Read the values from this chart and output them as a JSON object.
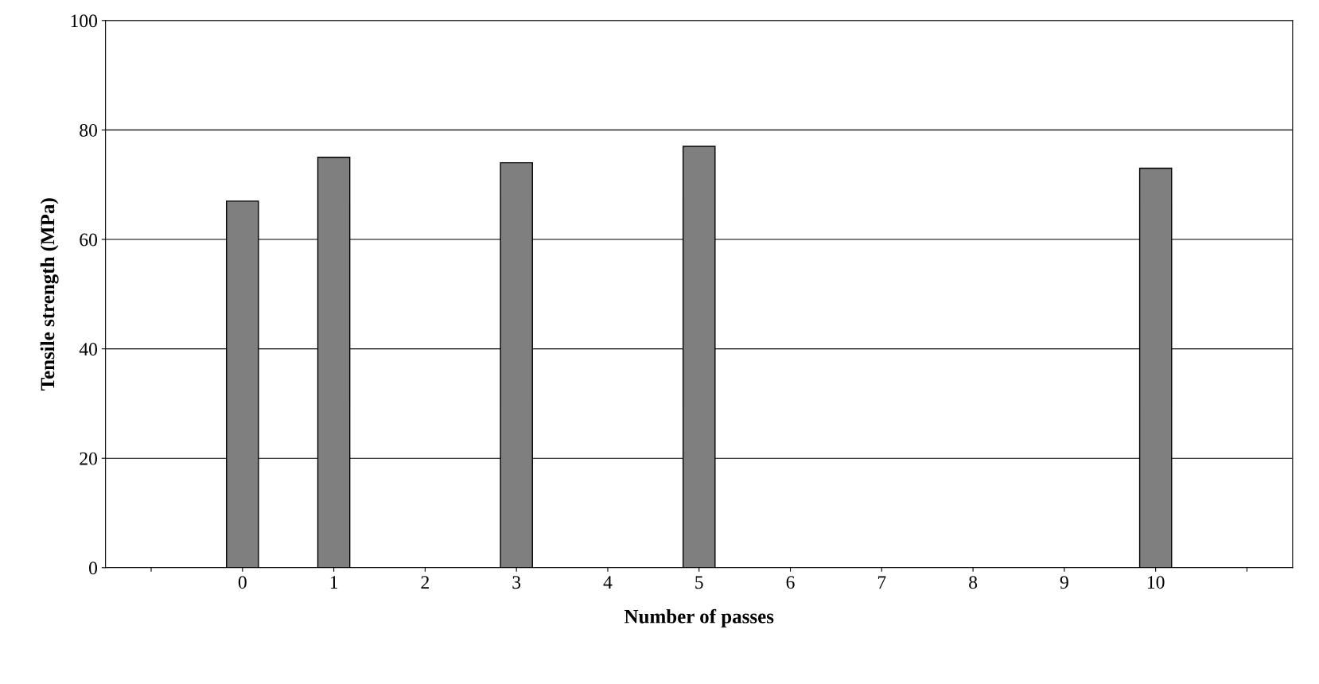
{
  "chart_data": {
    "type": "bar",
    "xlabel": "Number of passes",
    "ylabel": "Tensile strength (MPa)",
    "categories": [
      null,
      "0",
      "1",
      "2",
      "3",
      "4",
      "5",
      "6",
      "7",
      "8",
      "9",
      "10",
      null
    ],
    "values": [
      null,
      67,
      75,
      null,
      74,
      null,
      77,
      null,
      null,
      null,
      null,
      73,
      null
    ],
    "color": "#7f7f7f",
    "ylim": [
      0,
      100
    ],
    "yticks": [
      0,
      20,
      40,
      60,
      80,
      100
    ],
    "grid": "y"
  }
}
